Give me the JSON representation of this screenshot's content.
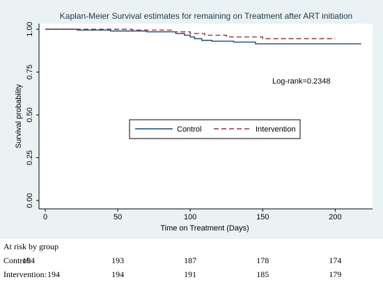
{
  "chart_data": {
    "type": "line",
    "title": "Kaplan-Meier Survival estimates for remaining on Treatment after ART initiation",
    "xlabel": "Time on Treatment (Days)",
    "ylabel": "Survival probability",
    "xlim": [
      0,
      220
    ],
    "ylim": [
      0,
      1
    ],
    "xticks": [
      "0",
      "50",
      "100",
      "150",
      "200"
    ],
    "yticks": [
      "0.00",
      "0.25",
      "0.50",
      "0.75",
      "1.00"
    ],
    "annotation": "Log-rank=0.2348",
    "legend_position": "center",
    "series": [
      {
        "name": "Control",
        "color": "#1a476f",
        "dash": "solid",
        "points": [
          [
            0,
            1.0
          ],
          [
            22,
            1.0
          ],
          [
            22,
            0.995
          ],
          [
            45,
            0.995
          ],
          [
            45,
            0.99
          ],
          [
            70,
            0.99
          ],
          [
            70,
            0.985
          ],
          [
            90,
            0.985
          ],
          [
            90,
            0.975
          ],
          [
            96,
            0.975
          ],
          [
            96,
            0.965
          ],
          [
            100,
            0.965
          ],
          [
            100,
            0.955
          ],
          [
            103,
            0.955
          ],
          [
            103,
            0.945
          ],
          [
            108,
            0.945
          ],
          [
            108,
            0.935
          ],
          [
            115,
            0.935
          ],
          [
            115,
            0.93
          ],
          [
            130,
            0.93
          ],
          [
            130,
            0.925
          ],
          [
            145,
            0.925
          ],
          [
            145,
            0.915
          ],
          [
            218,
            0.915
          ]
        ]
      },
      {
        "name": "Intervention",
        "color": "#90353b",
        "dash": "dashed",
        "points": [
          [
            0,
            1.0
          ],
          [
            60,
            1.0
          ],
          [
            60,
            0.995
          ],
          [
            88,
            0.995
          ],
          [
            88,
            0.985
          ],
          [
            100,
            0.985
          ],
          [
            100,
            0.975
          ],
          [
            110,
            0.975
          ],
          [
            110,
            0.965
          ],
          [
            125,
            0.965
          ],
          [
            125,
            0.955
          ],
          [
            150,
            0.955
          ],
          [
            150,
            0.945
          ],
          [
            200,
            0.945
          ]
        ]
      }
    ],
    "at_risk": {
      "heading": "At risk by group",
      "rows": [
        {
          "label": "Control:",
          "values": [
            "194",
            "193",
            "187",
            "178",
            "174"
          ]
        },
        {
          "label": "Intervention:",
          "values": [
            "194",
            "194",
            "191",
            "185",
            "179"
          ]
        }
      ]
    }
  }
}
